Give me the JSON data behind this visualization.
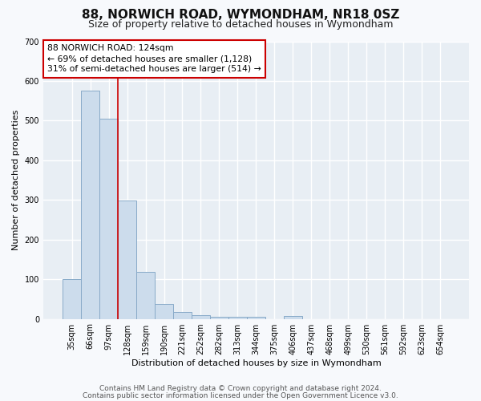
{
  "title": "88, NORWICH ROAD, WYMONDHAM, NR18 0SZ",
  "subtitle": "Size of property relative to detached houses in Wymondham",
  "xlabel": "Distribution of detached houses by size in Wymondham",
  "ylabel": "Number of detached properties",
  "categories": [
    "35sqm",
    "66sqm",
    "97sqm",
    "128sqm",
    "159sqm",
    "190sqm",
    "221sqm",
    "252sqm",
    "282sqm",
    "313sqm",
    "344sqm",
    "375sqm",
    "406sqm",
    "437sqm",
    "468sqm",
    "499sqm",
    "530sqm",
    "561sqm",
    "592sqm",
    "623sqm",
    "654sqm"
  ],
  "values": [
    100,
    575,
    505,
    298,
    118,
    38,
    17,
    10,
    6,
    5,
    5,
    0,
    8,
    0,
    0,
    0,
    0,
    0,
    0,
    0,
    0
  ],
  "bar_color": "#ccdcec",
  "bar_edge_color": "#88aac8",
  "vline_x_index": 3,
  "vline_color": "#cc0000",
  "annotation_text": "88 NORWICH ROAD: 124sqm\n← 69% of detached houses are smaller (1,128)\n31% of semi-detached houses are larger (514) →",
  "annotation_box_color": "#ffffff",
  "annotation_box_edge": "#cc0000",
  "ylim": [
    0,
    700
  ],
  "yticks": [
    0,
    100,
    200,
    300,
    400,
    500,
    600,
    700
  ],
  "fig_bg_color": "#f7f9fc",
  "plot_bg_color": "#e8eef4",
  "grid_color": "#ffffff",
  "footer1": "Contains HM Land Registry data © Crown copyright and database right 2024.",
  "footer2": "Contains public sector information licensed under the Open Government Licence v3.0.",
  "title_fontsize": 11,
  "subtitle_fontsize": 9,
  "axis_label_fontsize": 8,
  "tick_fontsize": 7,
  "footer_fontsize": 6.5
}
